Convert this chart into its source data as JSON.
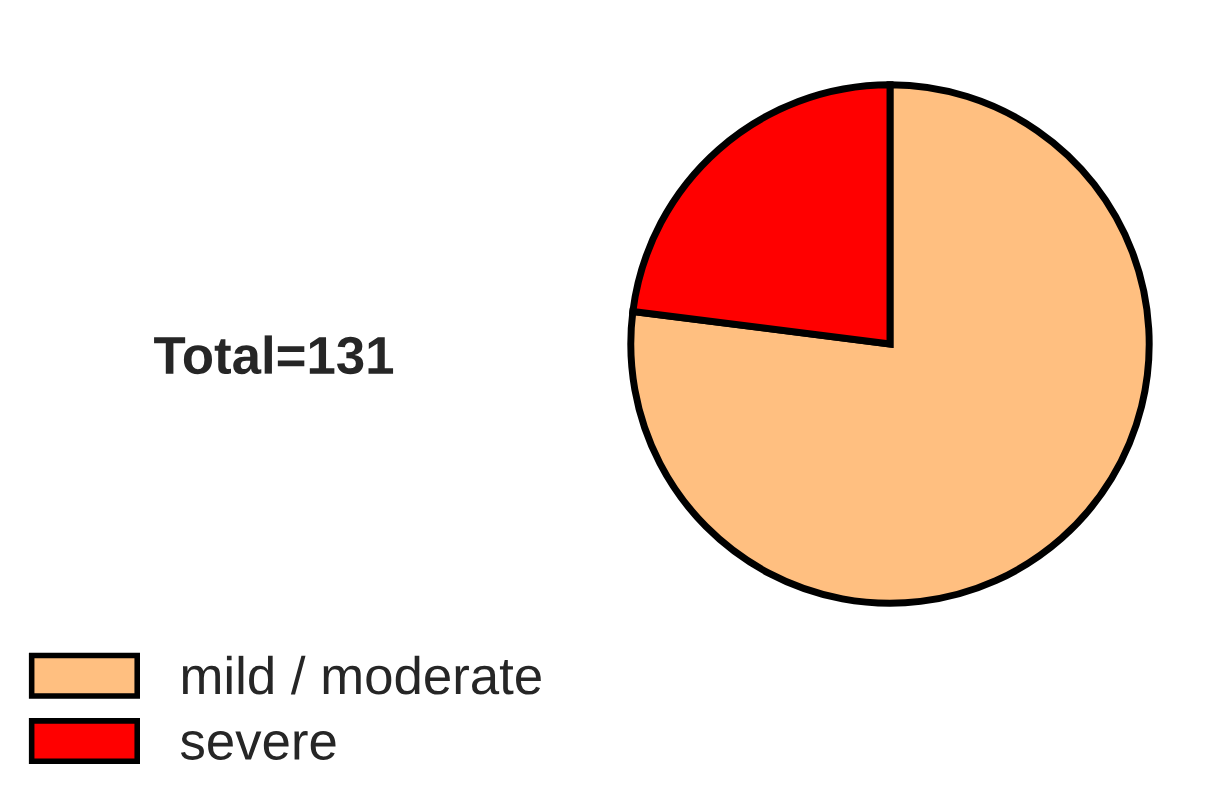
{
  "chart_data": {
    "type": "pie",
    "categories": [
      "mild / moderate",
      "severe"
    ],
    "values": [
      77,
      23
    ],
    "colors": [
      "#ffbf80",
      "#ff0000"
    ],
    "annotations": [
      "Total=131"
    ],
    "legend": "bottom left"
  }
}
